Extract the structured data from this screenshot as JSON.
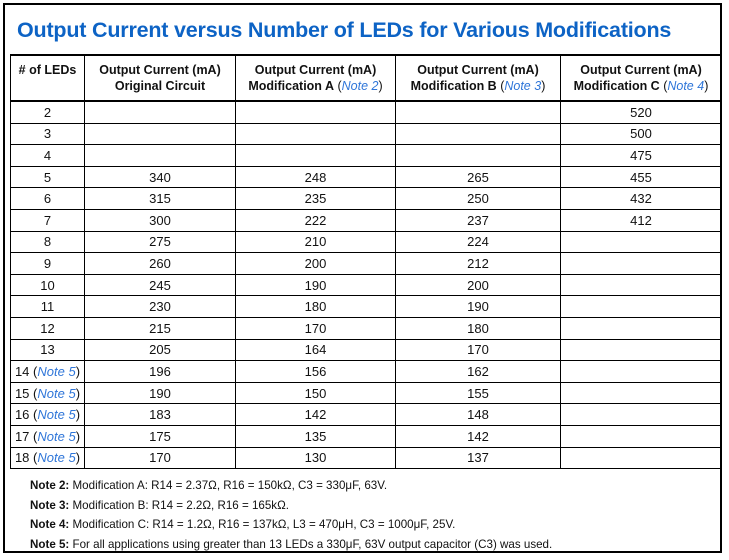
{
  "title": "Output Current versus Number of LEDs for Various Modifications",
  "colors": {
    "title_blue": "#0d63c5",
    "link_blue": "#2f76d9",
    "border_black": "#000000",
    "text_black": "#111111",
    "background": "#ffffff"
  },
  "table": {
    "columns": [
      {
        "line1": "# of LEDs",
        "line2": "",
        "note_ref": ""
      },
      {
        "line1": "Output Current (mA)",
        "line2": "Original Circuit",
        "note_ref": ""
      },
      {
        "line1": "Output Current (mA)",
        "line2": "Modification A",
        "note_ref": "Note 2"
      },
      {
        "line1": "Output Current (mA)",
        "line2": "Modification B",
        "note_ref": "Note 3"
      },
      {
        "line1": "Output Current (mA)",
        "line2": "Modification C",
        "note_ref": "Note 4"
      }
    ],
    "rows": [
      {
        "leds": "2",
        "note_ref": "",
        "values": [
          "",
          "",
          "",
          "520"
        ]
      },
      {
        "leds": "3",
        "note_ref": "",
        "values": [
          "",
          "",
          "",
          "500"
        ]
      },
      {
        "leds": "4",
        "note_ref": "",
        "values": [
          "",
          "",
          "",
          "475"
        ]
      },
      {
        "leds": "5",
        "note_ref": "",
        "values": [
          "340",
          "248",
          "265",
          "455"
        ]
      },
      {
        "leds": "6",
        "note_ref": "",
        "values": [
          "315",
          "235",
          "250",
          "432"
        ]
      },
      {
        "leds": "7",
        "note_ref": "",
        "values": [
          "300",
          "222",
          "237",
          "412"
        ]
      },
      {
        "leds": "8",
        "note_ref": "",
        "values": [
          "275",
          "210",
          "224",
          ""
        ]
      },
      {
        "leds": "9",
        "note_ref": "",
        "values": [
          "260",
          "200",
          "212",
          ""
        ]
      },
      {
        "leds": "10",
        "note_ref": "",
        "values": [
          "245",
          "190",
          "200",
          ""
        ]
      },
      {
        "leds": "11",
        "note_ref": "",
        "values": [
          "230",
          "180",
          "190",
          ""
        ]
      },
      {
        "leds": "12",
        "note_ref": "",
        "values": [
          "215",
          "170",
          "180",
          ""
        ]
      },
      {
        "leds": "13",
        "note_ref": "",
        "values": [
          "205",
          "164",
          "170",
          ""
        ]
      },
      {
        "leds": "14",
        "note_ref": "Note 5",
        "values": [
          "196",
          "156",
          "162",
          ""
        ]
      },
      {
        "leds": "15",
        "note_ref": "Note 5",
        "values": [
          "190",
          "150",
          "155",
          ""
        ]
      },
      {
        "leds": "16",
        "note_ref": "Note 5",
        "values": [
          "183",
          "142",
          "148",
          ""
        ]
      },
      {
        "leds": "17",
        "note_ref": "Note 5",
        "values": [
          "175",
          "135",
          "142",
          ""
        ]
      },
      {
        "leds": "18",
        "note_ref": "Note 5",
        "values": [
          "170",
          "130",
          "137",
          ""
        ]
      }
    ]
  },
  "notes": [
    {
      "label": "Note 2:",
      "text": "Modification A: R14 = 2.37Ω, R16 = 150kΩ, C3 = 330μF, 63V."
    },
    {
      "label": "Note 3:",
      "text": "Modification B: R14 = 2.2Ω, R16 = 165kΩ."
    },
    {
      "label": "Note 4:",
      "text": "Modification C: R14 = 1.2Ω, R16 = 137kΩ, L3 = 470μH, C3 = 1000μF, 25V."
    },
    {
      "label": "Note 5:",
      "text": "For all applications using greater than 13 LEDs a 330μF, 63V output capacitor (C3) was used."
    }
  ]
}
